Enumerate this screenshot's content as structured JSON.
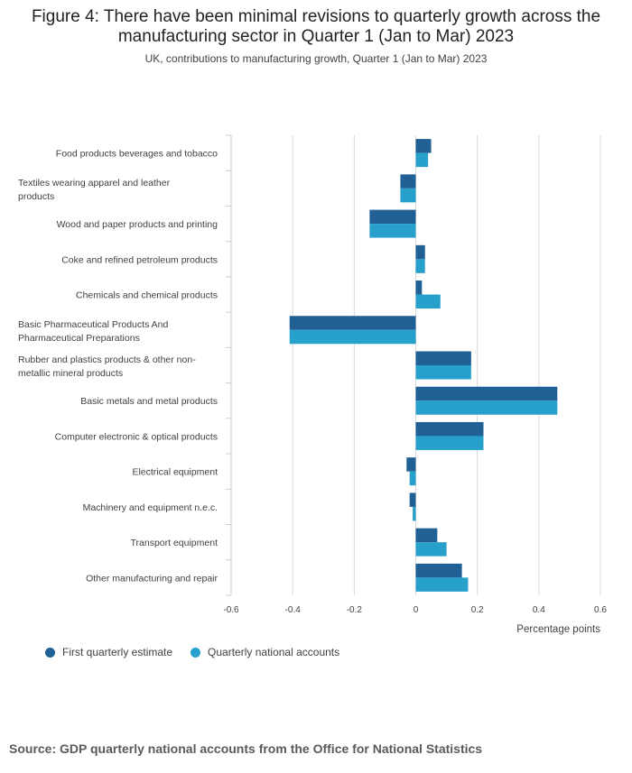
{
  "title": "Figure 4: There have been minimal revisions to quarterly growth across the manufacturing sector in Quarter 1 (Jan to Mar) 2023",
  "subtitle": "UK, contributions to manufacturing growth, Quarter 1 (Jan to Mar) 2023",
  "source": "Source: GDP quarterly national accounts from the Office for National Statistics",
  "colors": {
    "first": "#206095",
    "second": "#27a0cc",
    "grid": "#d9d9d9",
    "axis": "#cccccc"
  },
  "chart_data": {
    "type": "bar",
    "orientation": "horizontal",
    "categories": [
      "Food products beverages and tobacco",
      "Textiles wearing apparel and leather products",
      "Wood and paper products and printing",
      "Coke and refined petroleum products",
      "Chemicals and chemical products",
      "Basic Pharmaceutical Products And Pharmaceutical Preparations",
      "Rubber and plastics products & other non-metallic mineral products",
      "Basic metals and metal products",
      "Computer electronic & optical products",
      "Electrical equipment",
      "Machinery and equipment n.e.c.",
      "Transport equipment",
      "Other manufacturing and repair"
    ],
    "series": [
      {
        "name": "First quarterly estimate",
        "values": [
          0.05,
          -0.05,
          -0.15,
          0.03,
          0.02,
          -0.41,
          0.18,
          0.46,
          0.22,
          -0.03,
          -0.02,
          0.07,
          0.15
        ]
      },
      {
        "name": "Quarterly national accounts",
        "values": [
          0.04,
          -0.05,
          -0.15,
          0.03,
          0.08,
          -0.41,
          0.18,
          0.46,
          0.22,
          -0.02,
          -0.01,
          0.1,
          0.17
        ]
      }
    ],
    "xlim": [
      -0.6,
      0.6
    ],
    "xticks": [
      "-0.6",
      "-0.4",
      "-0.2",
      "0",
      "0.2",
      "0.4",
      "0.6"
    ],
    "xlabel": "Percentage points",
    "grid": true,
    "legend_position": "bottom-left"
  }
}
